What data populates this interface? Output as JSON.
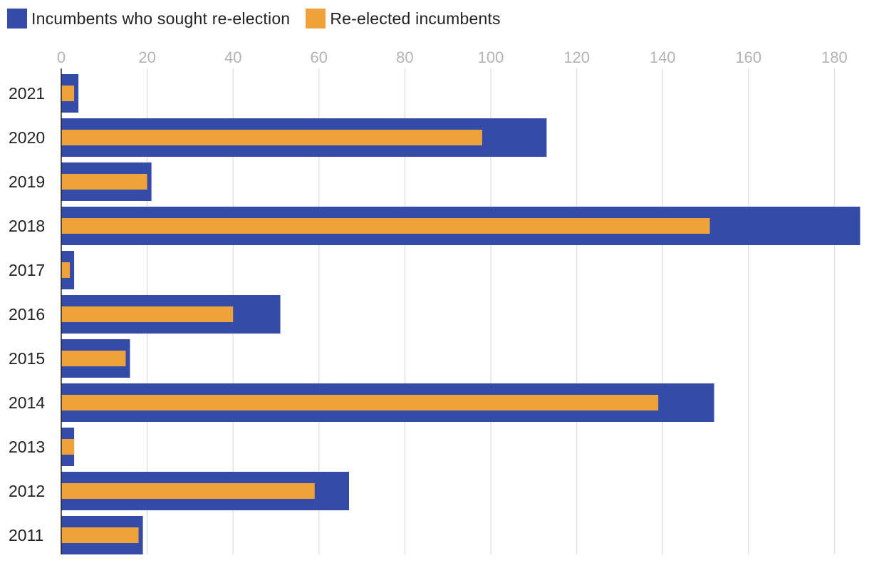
{
  "legend": {
    "sought_label": "Incumbents who sought re-election",
    "reelected_label": "Re-elected incumbents"
  },
  "colors": {
    "sought": "#344ca8",
    "reelected": "#f0a23a",
    "grid": "#e2e2e2",
    "axis": "#222222"
  },
  "chart_data": {
    "type": "bar",
    "orientation": "horizontal",
    "categories": [
      "2021",
      "2020",
      "2019",
      "2018",
      "2017",
      "2016",
      "2015",
      "2014",
      "2013",
      "2012",
      "2011"
    ],
    "series": [
      {
        "name": "Incumbents who sought re-election",
        "values": [
          4,
          113,
          21,
          186,
          3,
          51,
          16,
          152,
          3,
          67,
          19
        ]
      },
      {
        "name": "Re-elected incumbents",
        "values": [
          3,
          98,
          20,
          151,
          2,
          40,
          15,
          139,
          3,
          59,
          18
        ]
      }
    ],
    "xticks": [
      "0",
      "20",
      "40",
      "60",
      "80",
      "100",
      "120",
      "140",
      "160",
      "180"
    ],
    "xlim": [
      0,
      186
    ],
    "xaxis_position": "top",
    "grid": true,
    "legend_position": "top-left",
    "title": "",
    "xlabel": "",
    "ylabel": ""
  }
}
